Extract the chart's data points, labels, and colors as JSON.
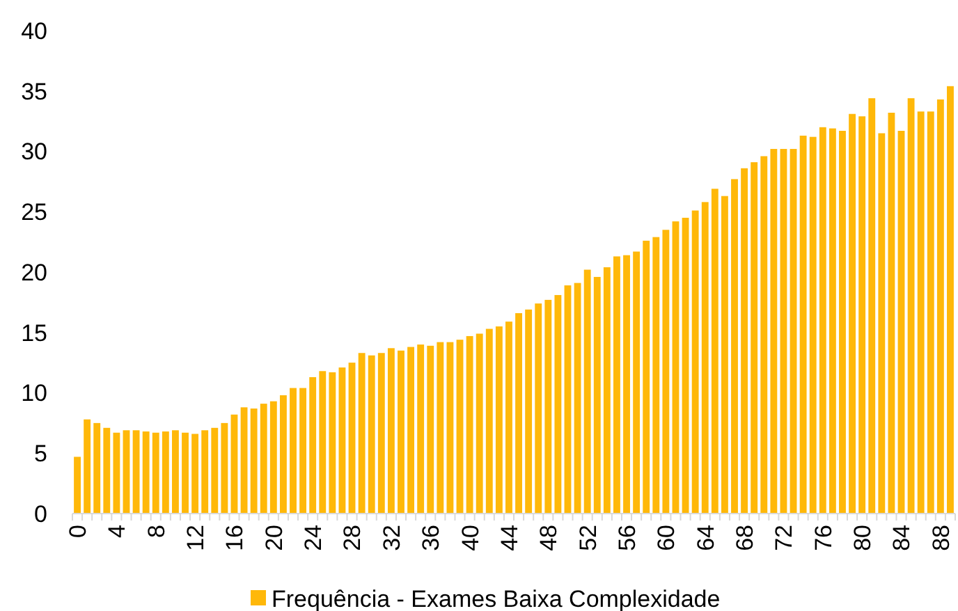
{
  "chart_data": {
    "type": "bar",
    "categories": [
      "0",
      null,
      null,
      null,
      "4",
      null,
      null,
      null,
      "8",
      null,
      null,
      null,
      "12",
      null,
      null,
      null,
      "16",
      null,
      null,
      null,
      "20",
      null,
      null,
      null,
      "24",
      null,
      null,
      null,
      "28",
      null,
      null,
      null,
      "32",
      null,
      null,
      null,
      "36",
      null,
      null,
      null,
      "40",
      null,
      null,
      null,
      "44",
      null,
      null,
      null,
      "48",
      null,
      null,
      null,
      "52",
      null,
      null,
      null,
      "56",
      null,
      null,
      null,
      "60",
      null,
      null,
      null,
      "64",
      null,
      null,
      null,
      "68",
      null,
      null,
      null,
      "72",
      null,
      null,
      null,
      "76",
      null,
      null,
      null,
      "80",
      null,
      null,
      null,
      "84",
      null,
      null,
      null,
      "88",
      null
    ],
    "series": [
      {
        "name": "Frequência - Exames Baixa Complexidade",
        "color": "#ffb809",
        "values": [
          4.7,
          7.8,
          7.5,
          7.1,
          6.7,
          6.9,
          6.9,
          6.8,
          6.7,
          6.8,
          6.9,
          6.7,
          6.6,
          6.9,
          7.1,
          7.5,
          8.2,
          8.8,
          8.7,
          9.1,
          9.3,
          9.8,
          10.4,
          10.4,
          11.3,
          11.8,
          11.7,
          12.1,
          12.5,
          13.3,
          13.1,
          13.3,
          13.7,
          13.5,
          13.8,
          14.0,
          13.9,
          14.2,
          14.2,
          14.4,
          14.7,
          14.9,
          15.3,
          15.5,
          15.9,
          16.6,
          16.9,
          17.4,
          17.7,
          18.1,
          18.9,
          19.1,
          20.2,
          19.6,
          20.4,
          21.3,
          21.4,
          21.7,
          22.6,
          22.9,
          23.5,
          24.2,
          24.5,
          25.1,
          25.8,
          26.9,
          26.3,
          27.7,
          28.6,
          29.1,
          29.6,
          30.2,
          30.2,
          30.2,
          31.3,
          31.2,
          32.0,
          31.9,
          31.7,
          33.1,
          32.9,
          34.4,
          31.5,
          33.2,
          31.7,
          34.4,
          33.3,
          33.3,
          34.3,
          35.4
        ]
      }
    ],
    "ylim": [
      0,
      40
    ],
    "yticks": [
      0,
      5,
      10,
      15,
      20,
      25,
      30,
      35,
      40
    ],
    "legend": "bottom"
  }
}
